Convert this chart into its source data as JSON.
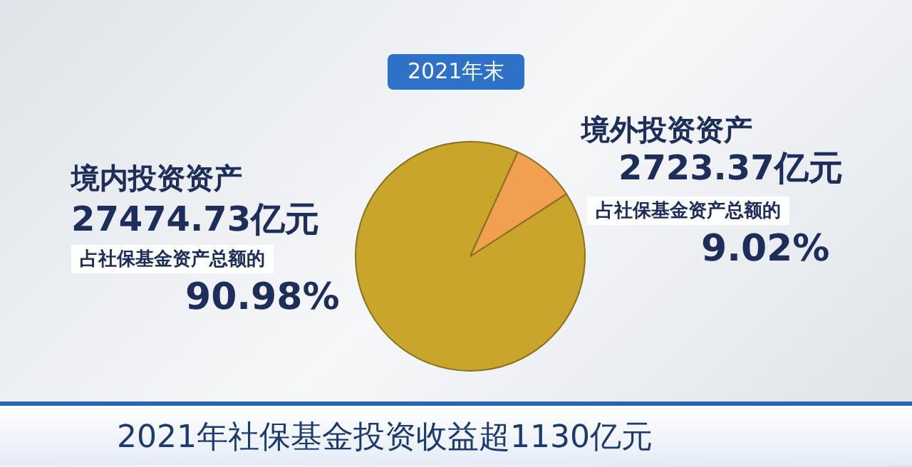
{
  "chart_data": {
    "type": "pie",
    "title": "2021年末",
    "categories": [
      "境内投资资产",
      "境外投资资产"
    ],
    "values": [
      27474.73,
      2723.37
    ],
    "colors": [
      "#c9a52a",
      "#f0a050"
    ],
    "value_labels": [
      "27474.73亿元",
      "2723.37亿元"
    ],
    "annotations": [
      "占社保基金资产总额的",
      "90.98%",
      "占社保基金资产总额的",
      "9.02%",
      "2021年社保基金投资收益超1130亿元"
    ],
    "legend": false
  }
}
